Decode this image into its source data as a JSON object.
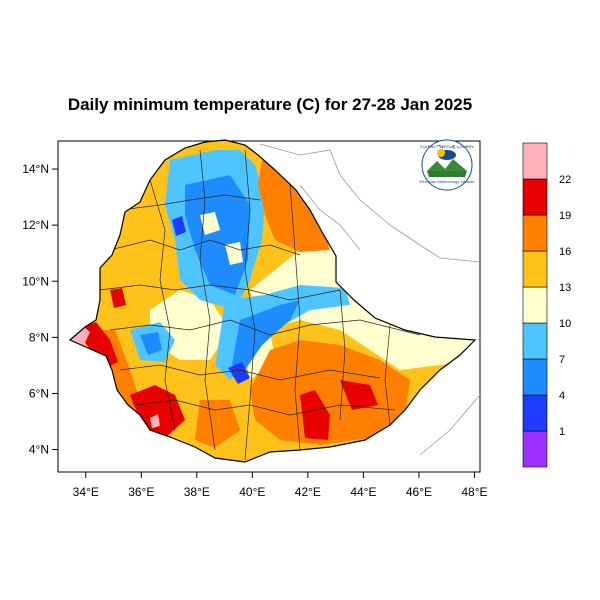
{
  "title": "Daily minimum temperature (C) for 27-28 Jan 2025",
  "map": {
    "lon_range": [
      33,
      48.2
    ],
    "lat_range": [
      3.2,
      15.0
    ],
    "x_ticks": [
      {
        "value": 34,
        "label": "34°E"
      },
      {
        "value": 36,
        "label": "36°E"
      },
      {
        "value": 38,
        "label": "38°E"
      },
      {
        "value": 40,
        "label": "40°E"
      },
      {
        "value": 42,
        "label": "42°E"
      },
      {
        "value": 44,
        "label": "44°E"
      },
      {
        "value": 46,
        "label": "46°E"
      },
      {
        "value": 48,
        "label": "48°E"
      }
    ],
    "y_ticks": [
      {
        "value": 4,
        "label": "4°N"
      },
      {
        "value": 6,
        "label": "6°N"
      },
      {
        "value": 8,
        "label": "8°N"
      },
      {
        "value": 10,
        "label": "10°N"
      },
      {
        "value": 12,
        "label": "12°N"
      },
      {
        "value": 14,
        "label": "14°N"
      }
    ]
  },
  "colorbar": {
    "bins": [
      {
        "color": "#9b30ff"
      },
      {
        "color": "#1e3cff",
        "label": "1"
      },
      {
        "color": "#1e8cff",
        "label": "4"
      },
      {
        "color": "#4ec5ff",
        "label": "7"
      },
      {
        "color": "#ffffd0",
        "label": "10"
      },
      {
        "color": "#ffc21a",
        "label": "13"
      },
      {
        "color": "#ff7f00",
        "label": "16"
      },
      {
        "color": "#e80000",
        "label": "19"
      },
      {
        "color": "#ffb0b8",
        "label": "22"
      }
    ]
  },
  "logo": {
    "text": "Ethiopian Meteorology Institute",
    "arc_text": "የኢትዮጵያ ሜቲዮሮሎጂ ኢንስቲትዩት"
  }
}
